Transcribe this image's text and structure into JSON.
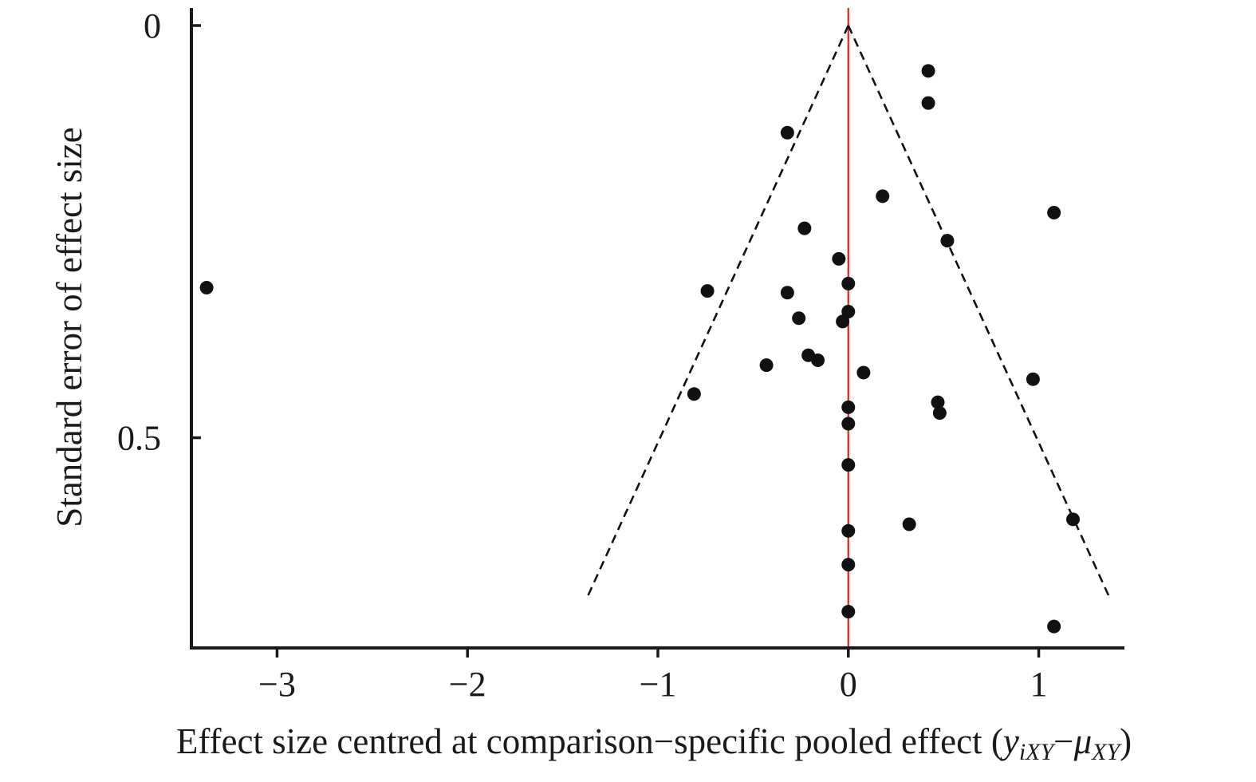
{
  "chart_data": {
    "type": "scatter",
    "title": "",
    "xlabel": "Effect size centred at comparison−specific pooled effect",
    "xlabel_formula": {
      "open": " (",
      "y": "y",
      "y_sub": "iXY",
      "minus": "−",
      "mu": "μ",
      "mu_sub": "XY",
      "close": ")"
    },
    "ylabel": "Standard error of effect size",
    "xlim": [
      -3.45,
      1.45
    ],
    "ylim": [
      0,
      0.755
    ],
    "y_inverted": true,
    "x_ticks": [
      {
        "value": -3,
        "label": "−3"
      },
      {
        "value": -2,
        "label": "−2"
      },
      {
        "value": -1,
        "label": "−1"
      },
      {
        "value": 0,
        "label": "0"
      },
      {
        "value": 1,
        "label": "1"
      }
    ],
    "y_ticks": [
      {
        "value": 0,
        "label": "0"
      },
      {
        "value": 0.5,
        "label": "0.5"
      }
    ],
    "reference_line": {
      "x": 0,
      "color": "#d42a2a"
    },
    "funnel": {
      "apex": [
        0,
        0
      ],
      "left_end": [
        -1.37,
        0.693
      ],
      "right_end": [
        1.37,
        0.693
      ],
      "style": "dashed",
      "color": "#111111"
    },
    "points": [
      {
        "x": 0.42,
        "y": 0.055
      },
      {
        "x": 0.42,
        "y": 0.094
      },
      {
        "x": -0.32,
        "y": 0.13
      },
      {
        "x": 0.18,
        "y": 0.207
      },
      {
        "x": 1.08,
        "y": 0.227
      },
      {
        "x": -0.23,
        "y": 0.246
      },
      {
        "x": 0.52,
        "y": 0.261
      },
      {
        "x": -0.05,
        "y": 0.283
      },
      {
        "x": 0.0,
        "y": 0.313
      },
      {
        "x": -3.37,
        "y": 0.318
      },
      {
        "x": -0.74,
        "y": 0.322
      },
      {
        "x": -0.32,
        "y": 0.324
      },
      {
        "x": 0.0,
        "y": 0.347
      },
      {
        "x": -0.26,
        "y": 0.355
      },
      {
        "x": -0.03,
        "y": 0.359
      },
      {
        "x": -0.21,
        "y": 0.4
      },
      {
        "x": -0.16,
        "y": 0.406
      },
      {
        "x": -0.43,
        "y": 0.412
      },
      {
        "x": 0.08,
        "y": 0.421
      },
      {
        "x": 0.97,
        "y": 0.429
      },
      {
        "x": -0.81,
        "y": 0.447
      },
      {
        "x": 0.47,
        "y": 0.457
      },
      {
        "x": 0.48,
        "y": 0.47
      },
      {
        "x": 0.0,
        "y": 0.463
      },
      {
        "x": 0.0,
        "y": 0.483
      },
      {
        "x": 0.0,
        "y": 0.533
      },
      {
        "x": 1.18,
        "y": 0.599
      },
      {
        "x": 0.32,
        "y": 0.605
      },
      {
        "x": 0.0,
        "y": 0.613
      },
      {
        "x": 0.0,
        "y": 0.654
      },
      {
        "x": 0.0,
        "y": 0.711
      },
      {
        "x": 1.08,
        "y": 0.729
      }
    ],
    "point_color": "#111111",
    "grid": false,
    "legend": "none"
  }
}
